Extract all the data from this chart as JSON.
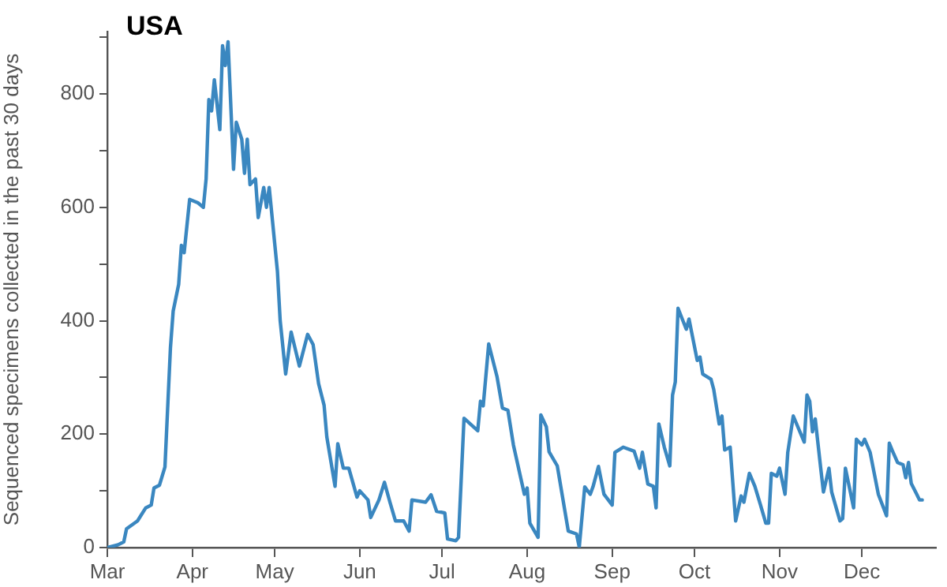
{
  "chart_data": {
    "type": "line",
    "title": "USA",
    "ylabel": "Sequenced specimens collected in the past 30 days",
    "color": "#3a87c0",
    "grid": false,
    "legend": false,
    "marker": "none",
    "line_style": "solid",
    "xlim": [
      "--03-01",
      "--12-28"
    ],
    "xticks": [
      {
        "value": "--03-01",
        "label": "Mar"
      },
      {
        "value": "--04-01",
        "label": "Apr"
      },
      {
        "value": "--05-01",
        "label": "May"
      },
      {
        "value": "--06-01",
        "label": "Jun"
      },
      {
        "value": "--07-01",
        "label": "Jul"
      },
      {
        "value": "--08-01",
        "label": "Aug"
      },
      {
        "value": "--09-01",
        "label": "Sep"
      },
      {
        "value": "--10-01",
        "label": "Oct"
      },
      {
        "value": "--11-01",
        "label": "Nov"
      },
      {
        "value": "--12-01",
        "label": "Dec"
      }
    ],
    "ylim": [
      0,
      910
    ],
    "yticks": [
      0,
      {
        "value": 100,
        "label": null
      },
      200,
      {
        "value": 300,
        "label": null
      },
      400,
      {
        "value": 500,
        "label": null
      },
      600,
      {
        "value": 700,
        "label": null
      },
      800,
      {
        "value": 900,
        "label": null
      }
    ],
    "x": [
      "--03-01",
      "--03-05",
      "--03-07",
      "--03-08",
      "--03-12",
      "--03-15",
      "--03-17",
      "--03-18",
      "--03-20",
      "--03-22",
      "--03-24",
      "--03-25",
      "--03-27",
      "--03-28",
      "--03-29",
      "--03-31",
      "--04-03",
      "--04-05",
      "--04-06",
      "--04-07",
      "--04-08",
      "--04-09",
      "--04-11",
      "--04-12",
      "--04-13",
      "--04-14",
      "--04-16",
      "--04-17",
      "--04-19",
      "--04-20",
      "--04-21",
      "--04-22",
      "--04-24",
      "--04-25",
      "--04-27",
      "--04-28",
      "--04-29",
      "--05-02",
      "--05-03",
      "--05-05",
      "--05-07",
      "--05-10",
      "--05-13",
      "--05-15",
      "--05-17",
      "--05-19",
      "--05-20",
      "--05-23",
      "--05-24",
      "--05-26",
      "--05-28",
      "--05-31",
      "--06-01",
      "--06-04",
      "--06-05",
      "--06-08",
      "--06-10",
      "--06-12",
      "--06-14",
      "--06-17",
      "--06-19",
      "--06-20",
      "--06-25",
      "--06-27",
      "--06-29",
      "--07-02",
      "--07-03",
      "--07-06",
      "--07-07",
      "--07-09",
      "--07-14",
      "--07-15",
      "--07-16",
      "--07-18",
      "--07-21",
      "--07-23",
      "--07-25",
      "--07-27",
      "--07-31",
      "--08-01",
      "--08-02",
      "--08-05",
      "--08-06",
      "--08-08",
      "--08-09",
      "--08-12",
      "--08-16",
      "--08-19",
      "--08-20",
      "--08-22",
      "--08-24",
      "--08-25",
      "--08-27",
      "--08-29",
      "--09-01",
      "--09-02",
      "--09-05",
      "--09-09",
      "--09-11",
      "--09-12",
      "--09-14",
      "--09-16",
      "--09-17",
      "--09-18",
      "--09-20",
      "--09-22",
      "--09-23",
      "--09-24",
      "--09-25",
      "--09-28",
      "--09-29",
      "--10-02",
      "--10-03",
      "--10-04",
      "--10-07",
      "--10-08",
      "--10-10",
      "--10-11",
      "--10-12",
      "--10-14",
      "--10-16",
      "--10-18",
      "--10-19",
      "--10-21",
      "--10-23",
      "--10-25",
      "--10-27",
      "--10-28",
      "--10-29",
      "--10-31",
      "--11-01",
      "--11-03",
      "--11-04",
      "--11-06",
      "--11-10",
      "--11-11",
      "--11-12",
      "--11-13",
      "--11-14",
      "--11-16",
      "--11-17",
      "--11-19",
      "--11-20",
      "--11-23",
      "--11-24",
      "--11-25",
      "--11-28",
      "--11-29",
      "--12-01",
      "--12-02",
      "--12-04",
      "--12-07",
      "--12-10",
      "--12-11",
      "--12-12",
      "--12-14",
      "--12-16",
      "--12-17",
      "--12-18",
      "--12-19",
      "--12-21",
      "--12-22",
      "--12-23"
    ],
    "values": [
      0,
      5,
      10,
      33,
      47,
      70,
      75,
      105,
      110,
      142,
      352,
      417,
      464,
      533,
      520,
      614,
      608,
      600,
      650,
      790,
      770,
      825,
      737,
      885,
      850,
      892,
      667,
      750,
      720,
      660,
      720,
      640,
      650,
      582,
      635,
      600,
      635,
      487,
      400,
      306,
      380,
      320,
      376,
      358,
      289,
      251,
      195,
      108,
      183,
      140,
      140,
      89,
      100,
      84,
      53,
      84,
      115,
      80,
      47,
      47,
      29,
      84,
      80,
      93,
      64,
      61,
      15,
      12,
      18,
      228,
      206,
      258,
      250,
      359,
      302,
      246,
      242,
      181,
      94,
      105,
      43,
      18,
      234,
      213,
      169,
      144,
      29,
      24,
      1,
      107,
      94,
      107,
      143,
      94,
      75,
      168,
      177,
      170,
      140,
      168,
      112,
      108,
      70,
      218,
      177,
      144,
      269,
      292,
      422,
      385,
      403,
      330,
      336,
      306,
      297,
      279,
      218,
      232,
      172,
      177,
      47,
      91,
      80,
      131,
      108,
      76,
      43,
      43,
      131,
      126,
      140,
      94,
      168,
      232,
      186,
      269,
      258,
      204,
      227,
      140,
      98,
      140,
      98,
      47,
      51,
      140,
      70,
      191,
      181,
      191,
      168,
      94,
      56,
      184,
      172,
      150,
      146,
      123,
      150,
      113,
      94,
      84,
      84
    ]
  }
}
